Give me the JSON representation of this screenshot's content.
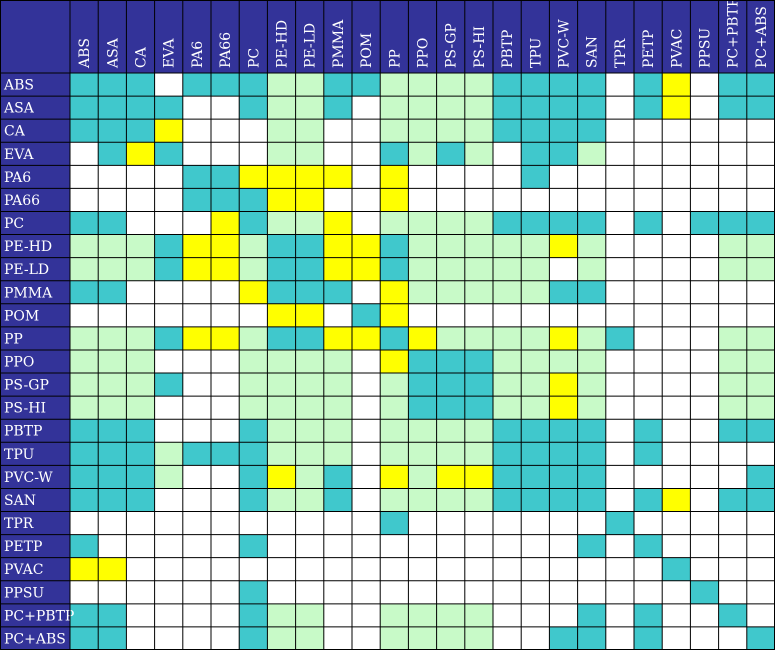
{
  "chart_data": {
    "type": "heatmap",
    "materials": [
      "ABS",
      "ASA",
      "CA",
      "EVA",
      "PA6",
      "PA66",
      "PC",
      "PE-HD",
      "PE-LD",
      "PMMA",
      "POM",
      "PP",
      "PPO",
      "PS-GP",
      "PS-HI",
      "PBTP",
      "TPU",
      "PVC-W",
      "SAN",
      "TPR",
      "PETP",
      "PVAC",
      "PPSU",
      "PC+PBTP",
      "PC+ABS"
    ],
    "cell_colors": {
      "T": "#40c8cc",
      "L": "#c8fac8",
      "Y": "#ffff00",
      "W": "#ffffff"
    },
    "header_color": "#333399",
    "grid_color": "#000000",
    "rows": [
      "TTTWTTTLLTTLLLLTTTTWTYWTT",
      "TTTTWWTLLTWLLLLTTTTWTYWTT",
      "TTTYWWWLLWWLLLLTTTTWWWWWW",
      "WTYTWWWLLWWTLTLWTTLWWWWWW",
      "WWWWTTYYYYWYWWWWTWWWWWWWW",
      "WWWWTTTYYWWYWWWWWWWWWWWWW",
      "TTWWWYTLLYWLLLLTTTTWTWTTT",
      "LLLTYYLTTYYTLLLLLYLWWWWLL",
      "LLLTYYLTTYYTLLLLLWLWWWWLL",
      "TTWWWWYTTTWYLLLLLTTWWWWWW",
      "WWWWWWWYYWTYWWWWWWWWWWWWW",
      "LLLTYYLTTYYTYLLLLYLTWWWLL",
      "LLLWWWLLLLWYTTTLLLLWWWWLL",
      "LLLTWWLLLLWLTTTLLYLWWWWLL",
      "LLLWWWLLLLWLTTTLLYLWWWWLL",
      "TTTWWWTLLLWLLLLTTTTWTWWTT",
      "TTTLTTTLLLWLLLLTTTTWTWWWW",
      "TTTLWWTYLTWYLYYTTTTWWWWWT",
      "TTTWWWTLLTWLLLLTTTTWTYWTT",
      "WWWWWWWWWWWTWWWWWWWTWWWWW",
      "TWWWWWTWWWWWWWWWWWTWTWWWW",
      "YYWWWWWWWWWWWWWWWWWWWTWWW",
      "WWWWWWTWWWWWWWWWWWWWWWTWW",
      "TTWWWWTLLWWLLLLWWWTWTWWTW",
      "TTWWWWTLLWWLLLLWWTTWTWWWT"
    ]
  }
}
